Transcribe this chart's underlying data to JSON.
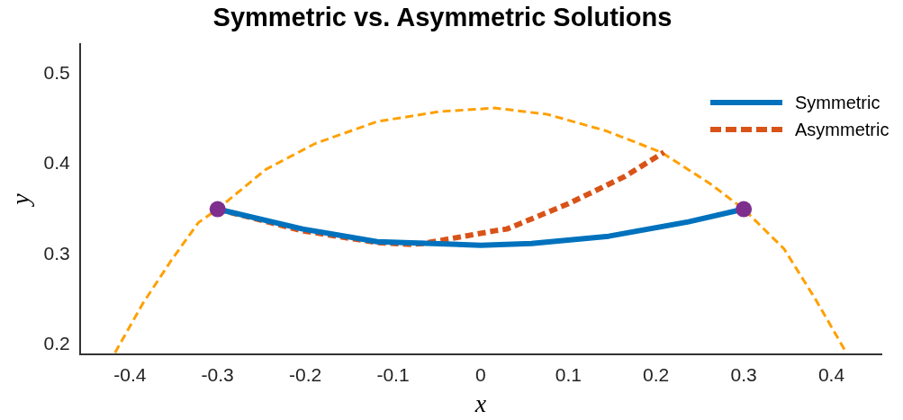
{
  "chart_data": {
    "type": "line",
    "title": "Symmetric vs. Asymmetric Solutions",
    "xlabel": "x",
    "ylabel": "y",
    "xlim": [
      -0.457,
      0.457
    ],
    "ylim": [
      0.189,
      0.533
    ],
    "xticks": [
      -0.4,
      -0.3,
      -0.2,
      -0.1,
      0,
      0.1,
      0.2,
      0.3,
      0.4
    ],
    "yticks": [
      0.2,
      0.3,
      0.4,
      0.5
    ],
    "grid": false,
    "legend": "top right",
    "marker": "none",
    "series": [
      {
        "name": "Symmetric",
        "color": "#0072bd",
        "line_style": "solid",
        "x": [
          -0.3,
          -0.203,
          -0.118,
          0,
          0.058,
          0.146,
          0.237,
          0.3
        ],
        "values": [
          0.35,
          0.328,
          0.314,
          0.31,
          0.312,
          0.32,
          0.336,
          0.35
        ]
      },
      {
        "name": "Asymmetric",
        "color": "#d95319",
        "line_style": "dashed",
        "x": [
          -0.3,
          -0.203,
          -0.118,
          -0.08,
          -0.065,
          0.016,
          0.03,
          0.1,
          0.164,
          0.209
        ],
        "values": [
          0.35,
          0.326,
          0.313,
          0.311,
          0.312,
          0.326,
          0.328,
          0.356,
          0.386,
          0.413
        ]
      },
      {
        "color": "#ffa000",
        "line_style": "dashed",
        "x": [
          -0.417,
          -0.385,
          -0.353,
          -0.322,
          -0.3,
          -0.245,
          -0.188,
          -0.118,
          -0.047,
          0.016,
          0.076,
          0.142,
          0.206,
          0.262,
          0.3,
          0.346,
          0.382,
          0.417
        ],
        "values": [
          0.191,
          0.246,
          0.293,
          0.335,
          0.35,
          0.394,
          0.423,
          0.447,
          0.458,
          0.462,
          0.455,
          0.437,
          0.413,
          0.378,
          0.35,
          0.306,
          0.25,
          0.191
        ]
      },
      {
        "type": "scatter",
        "color": "#7e2f8e",
        "marker": "circle",
        "x": [
          -0.3,
          0.3
        ],
        "values": [
          0.35,
          0.35
        ]
      }
    ]
  }
}
